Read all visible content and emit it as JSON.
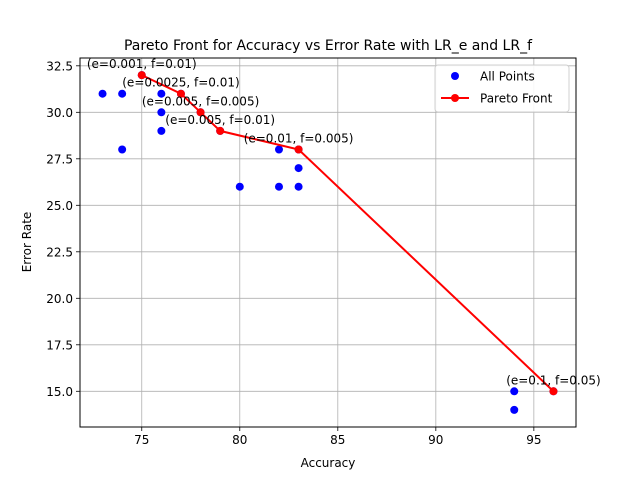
{
  "chart_data": {
    "type": "scatter",
    "title": "Pareto Front for Accuracy vs Error Rate with LR_e and LR_f",
    "xlabel": "Accuracy",
    "ylabel": "Error Rate",
    "xlim": [
      71.85,
      97.15
    ],
    "ylim": [
      13.08,
      32.92
    ],
    "xticks": [
      75,
      80,
      85,
      90,
      95
    ],
    "xtick_labels": [
      "75",
      "80",
      "85",
      "90",
      "95"
    ],
    "yticks": [
      15.0,
      17.5,
      20.0,
      22.5,
      25.0,
      27.5,
      30.0,
      32.5
    ],
    "ytick_labels": [
      "15.0",
      "17.5",
      "20.0",
      "22.5",
      "25.0",
      "27.5",
      "30.0",
      "32.5"
    ],
    "grid": true,
    "legend_position": "top-right",
    "series": [
      {
        "name": "All Points",
        "kind": "scatter",
        "color": "#0000ff",
        "points": [
          [
            73,
            31
          ],
          [
            74,
            31
          ],
          [
            74,
            28
          ],
          [
            75,
            32
          ],
          [
            76,
            31
          ],
          [
            76,
            30
          ],
          [
            76,
            29
          ],
          [
            77,
            31
          ],
          [
            78,
            30
          ],
          [
            79,
            29
          ],
          [
            80,
            26
          ],
          [
            82,
            28
          ],
          [
            82,
            26
          ],
          [
            83,
            28
          ],
          [
            83,
            27
          ],
          [
            83,
            26
          ],
          [
            94,
            15
          ],
          [
            94,
            14
          ],
          [
            96,
            15
          ]
        ]
      },
      {
        "name": "Pareto Front",
        "kind": "line",
        "color": "#ff0000",
        "points": [
          [
            75,
            32
          ],
          [
            77,
            31
          ],
          [
            78,
            30
          ],
          [
            79,
            29
          ],
          [
            83,
            28
          ],
          [
            96,
            15
          ]
        ]
      }
    ],
    "annotations": [
      {
        "text": "(e=0.001, f=0.01)",
        "x": 75,
        "y": 32
      },
      {
        "text": "(e=0.0025, f=0.01)",
        "x": 77,
        "y": 31
      },
      {
        "text": "(e=0.005, f=0.005)",
        "x": 78,
        "y": 30
      },
      {
        "text": "(e=0.005, f=0.01)",
        "x": 79,
        "y": 29
      },
      {
        "text": "(e=0.01, f=0.005)",
        "x": 83,
        "y": 28
      },
      {
        "text": "(e=0.1, f=0.05)",
        "x": 96,
        "y": 15
      }
    ]
  }
}
